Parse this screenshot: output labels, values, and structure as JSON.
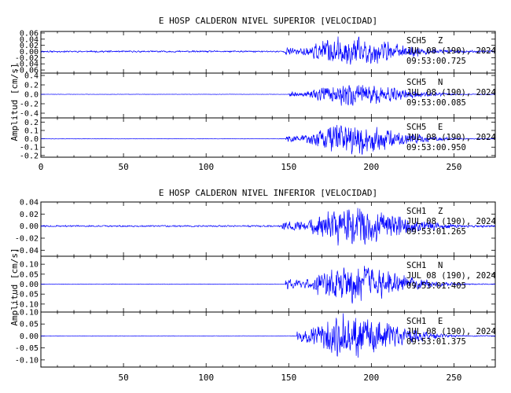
{
  "chart_data": [
    {
      "type": "line",
      "title": "E HOSP CALDERON NIVEL SUPERIOR [VELOCIDAD]",
      "ylabel": "Amplitud [cm/s]",
      "xlim": [
        0,
        275
      ],
      "x_ticks": [
        "0",
        "50",
        "100",
        "150",
        "200",
        "250"
      ],
      "color": "#0000ff",
      "traces": [
        {
          "station": "SCH5",
          "component": "Z",
          "date": "JUL 08 (190), 2024",
          "time": "09:53:00.725",
          "ylim": [
            -0.07,
            0.065
          ],
          "y_ticks": [
            "0.06",
            "0.04",
            "0.02",
            "0.00",
            "-0.02",
            "-0.04",
            "-0.06"
          ],
          "y_tick_values": [
            0.06,
            0.04,
            0.02,
            0.0,
            -0.02,
            -0.04,
            -0.06
          ],
          "pre_event_amplitude": 0.003,
          "peak_amplitude": 0.05,
          "peak_time": 183,
          "event_onset": 148,
          "seed": 11
        },
        {
          "station": "SCH5",
          "component": "N",
          "date": "JUL 08 (190), 2024",
          "time": "09:53:00.085",
          "ylim": [
            -0.5,
            0.45
          ],
          "y_ticks": [
            "0.4",
            "0.2",
            "0.0",
            "-0.2",
            "-0.4"
          ],
          "y_tick_values": [
            0.4,
            0.2,
            0.0,
            -0.2,
            -0.4
          ],
          "pre_event_amplitude": 0.004,
          "peak_amplitude": 0.28,
          "peak_time": 184,
          "event_onset": 150,
          "seed": 22
        },
        {
          "station": "SCH5",
          "component": "E",
          "date": "JUL 08 (190), 2024",
          "time": "09:53:00.950",
          "ylim": [
            -0.22,
            0.25
          ],
          "y_ticks": [
            "0.2",
            "0.1",
            "0.0",
            "-0.1",
            "-0.2"
          ],
          "y_tick_values": [
            0.2,
            0.1,
            0.0,
            -0.1,
            -0.2
          ],
          "pre_event_amplitude": 0.003,
          "peak_amplitude": 0.2,
          "peak_time": 183,
          "event_onset": 148,
          "seed": 33
        }
      ]
    },
    {
      "type": "line",
      "title": "E HOSP CALDERON NIVEL INFERIOR [VELOCIDAD]",
      "ylabel": "Amplitud [cm/s]",
      "xlim": [
        0,
        275
      ],
      "x_ticks": [
        "50",
        "100",
        "150",
        "200",
        "250"
      ],
      "color": "#0000ff",
      "traces": [
        {
          "station": "SCH1",
          "component": "Z",
          "date": "JUL 08 (190), 2024",
          "time": "09:53:01.265",
          "ylim": [
            -0.05,
            0.04
          ],
          "y_ticks": [
            "0.04",
            "0.02",
            "0.00",
            "-0.02",
            "-0.04"
          ],
          "y_tick_values": [
            0.04,
            0.02,
            0.0,
            -0.02,
            -0.04
          ],
          "pre_event_amplitude": 0.0015,
          "peak_amplitude": 0.035,
          "peak_time": 185,
          "event_onset": 146,
          "seed": 44
        },
        {
          "station": "SCH1",
          "component": "N",
          "date": "JUL 08 (190), 2024",
          "time": "09:53:01.405",
          "ylim": [
            -0.14,
            0.14
          ],
          "y_ticks": [
            "0.10",
            "0.05",
            "0.00",
            "-0.05",
            "-0.10"
          ],
          "y_tick_values": [
            0.1,
            0.05,
            0.0,
            -0.05,
            -0.1
          ],
          "pre_event_amplitude": 0.0015,
          "peak_amplitude": 0.11,
          "peak_time": 183,
          "event_onset": 148,
          "seed": 55
        },
        {
          "station": "SCH1",
          "component": "E",
          "date": "JUL 08 (190), 2024",
          "time": "09:53:01.375",
          "ylim": [
            -0.13,
            0.1
          ],
          "y_ticks": [
            "0.10",
            "0.05",
            "0.00",
            "-0.05",
            "-0.10"
          ],
          "y_tick_values": [
            0.1,
            0.05,
            0.0,
            -0.05,
            -0.1
          ],
          "pre_event_amplitude": 0.0012,
          "peak_amplitude": 0.1,
          "peak_time": 182,
          "event_onset": 155,
          "seed": 66
        }
      ]
    }
  ]
}
